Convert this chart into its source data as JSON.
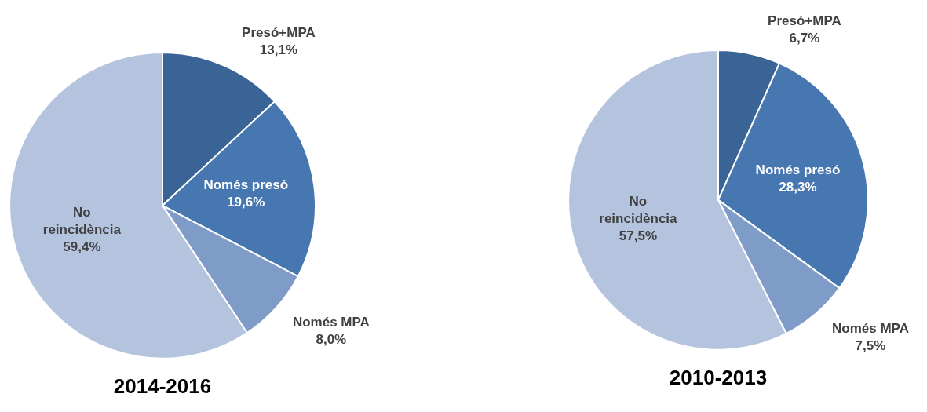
{
  "chart_data": [
    {
      "type": "pie",
      "title": "2014-2016",
      "categories": [
        "Presó+MPA",
        "Només presó",
        "Només MPA",
        "No reincidència"
      ],
      "values": [
        13.1,
        19.6,
        8.0,
        59.4
      ],
      "value_labels": [
        "13,1%",
        "19,6%",
        "8,0%",
        "59,4%"
      ],
      "colors": [
        "#3b6496",
        "#4777b0",
        "#7f9cc8",
        "#b4c3de"
      ],
      "legend": false
    },
    {
      "type": "pie",
      "title": "2010-2013",
      "categories": [
        "Presó+MPA",
        "Només presó",
        "Només MPA",
        "No reincidència"
      ],
      "values": [
        6.7,
        28.3,
        7.5,
        57.5
      ],
      "value_labels": [
        "6,7%",
        "28,3%",
        "7,5%",
        "57,5%"
      ],
      "colors": [
        "#3b6496",
        "#4777b0",
        "#7f9cc8",
        "#b4c3de"
      ],
      "legend": false
    }
  ]
}
